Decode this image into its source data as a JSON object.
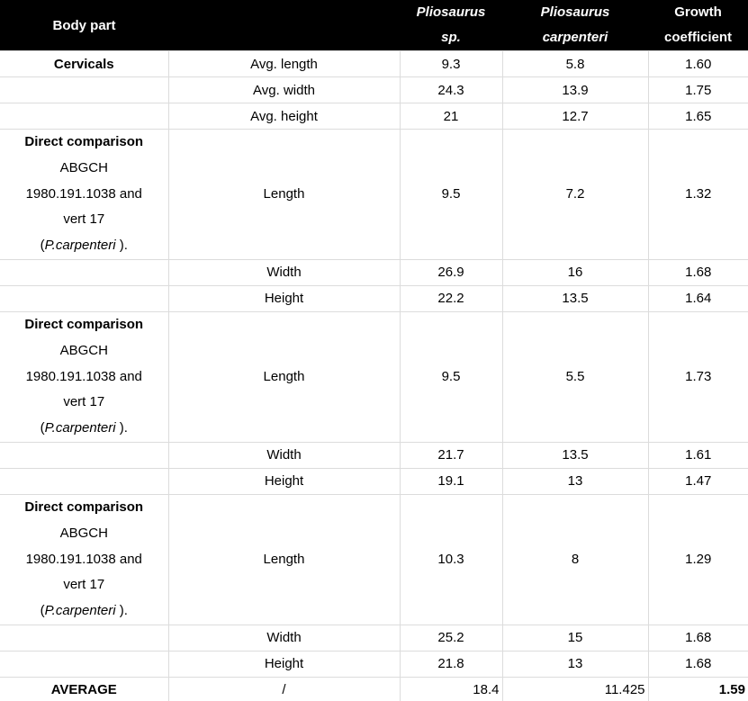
{
  "chart_data": {
    "type": "table",
    "title": "",
    "columns": [
      "Body part",
      "",
      "Pliosaurus sp.",
      "Pliosaurus carpenteri",
      "Growth coefficient"
    ],
    "rows": [
      [
        "Cervicals",
        "Avg. length",
        "9.3",
        "5.8",
        "1.60"
      ],
      [
        "",
        "Avg. width",
        "24.3",
        "13.9",
        "1.75"
      ],
      [
        "",
        "Avg. height",
        "21",
        "12.7",
        "1.65"
      ],
      [
        "Direct comparison ABGCH 1980.191.1038 and vert 17 (P.carpenteri ).",
        "Length",
        "9.5",
        "7.2",
        "1.32"
      ],
      [
        "",
        "Width",
        "26.9",
        "16",
        "1.68"
      ],
      [
        "",
        "Height",
        "22.2",
        "13.5",
        "1.64"
      ],
      [
        "Direct comparison ABGCH 1980.191.1038 and vert 17 (P.carpenteri ).",
        "Length",
        "9.5",
        "5.5",
        "1.73"
      ],
      [
        "",
        "Width",
        "21.7",
        "13.5",
        "1.61"
      ],
      [
        "",
        "Height",
        "19.1",
        "13",
        "1.47"
      ],
      [
        "Direct comparison ABGCH 1980.191.1038 and vert 17 (P.carpenteri ).",
        "Length",
        "10.3",
        "8",
        "1.29"
      ],
      [
        "",
        "Width",
        "25.2",
        "15",
        "1.68"
      ],
      [
        "",
        "Height",
        "21.8",
        "13",
        "1.68"
      ],
      [
        "AVERAGE",
        "/",
        "18.4",
        "11.425",
        "1.59"
      ]
    ]
  },
  "display": {
    "header": {
      "sp_line1": "Pliosaurus",
      "sp_line2": "sp.",
      "carpenteri_line1": "Pliosaurus",
      "carpenteri_line2": "carpenteri",
      "growth_line1": "Growth",
      "growth_line2": "coefficient"
    },
    "block_label": {
      "line1": "Direct comparison",
      "line2": "ABGCH",
      "line3": "1980.191.1038 and",
      "line4": "vert 17",
      "line5_prefix": "(",
      "line5_species": "P.carpenteri",
      "line5_suffix": " )."
    },
    "colors": {
      "header_bg": "#000000",
      "header_text": "#ffffff",
      "gridline": "#dcdcdc",
      "body_text": "#000000",
      "row_bg": "#ffffff"
    }
  }
}
